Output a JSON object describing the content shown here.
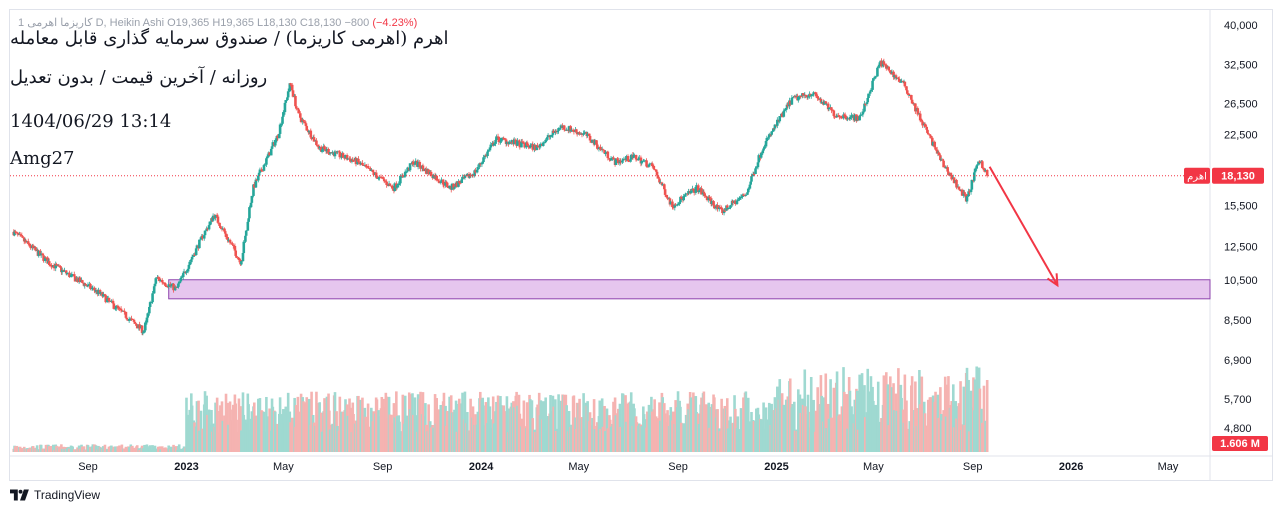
{
  "header": {
    "ohlc_text": "1 ‎کاریزما اهرمی‎ D, Heikin Ashi  O19,365  H19,365  L18,130  C18,130  −800",
    "change_text": "(−4.23%)"
  },
  "annotations": {
    "line1": "اهرم (اهرمی کاریزما) / صندوق سرمایه گذاری قابل معامله",
    "line2": "روزانه / آخرین قیمت / بدون تعدیل",
    "line3": "1404/06/29 13:14",
    "line4": "Amg27"
  },
  "branding": {
    "name": "TradingView"
  },
  "colors": {
    "up": "#26a69a",
    "down": "#ef5350",
    "vol_up": "#9fd9d1",
    "vol_down": "#f5b3b1",
    "price_label": "#f23645",
    "zone_fill": "#e6c6ee",
    "zone_stroke": "#8e44ad",
    "arrow": "#f23645",
    "axis_text": "#131722"
  },
  "chart_data": {
    "type": "candlestick",
    "style": "Heikin Ashi",
    "timeframe": "D",
    "scale": "log",
    "last_price": 18130,
    "last_price_label": "18,130",
    "symbol_label": "اهرم",
    "volume_label": "1.606 M",
    "y_ticks": [
      40000,
      32500,
      26500,
      22500,
      18500,
      15500,
      12500,
      10500,
      8500
    ],
    "y_tick_labels": [
      "40,000",
      "32,500",
      "26,500",
      "22,500",
      "",
      "15,500",
      "12,500",
      "10,500",
      "8,500"
    ],
    "volume_ticks": [
      6900000,
      5700000,
      4800000
    ],
    "volume_tick_labels": [
      "6,900",
      "5,700",
      "4,800"
    ],
    "x_ticks": [
      {
        "date": "2022-09",
        "label": "Sep",
        "bold": false
      },
      {
        "date": "2023-01",
        "label": "2023",
        "bold": true
      },
      {
        "date": "2023-05",
        "label": "May",
        "bold": false
      },
      {
        "date": "2023-09",
        "label": "Sep",
        "bold": false
      },
      {
        "date": "2024-01",
        "label": "2024",
        "bold": true
      },
      {
        "date": "2024-05",
        "label": "May",
        "bold": false
      },
      {
        "date": "2024-09",
        "label": "Sep",
        "bold": false
      },
      {
        "date": "2025-01",
        "label": "2025",
        "bold": true
      },
      {
        "date": "2025-05",
        "label": "May",
        "bold": false
      },
      {
        "date": "2025-09",
        "label": "Sep",
        "bold": false
      },
      {
        "date": "2026-01",
        "label": "2026",
        "bold": true
      },
      {
        "date": "2026-05",
        "label": "May",
        "bold": false
      }
    ],
    "price_path": [
      [
        "2022-06-01",
        13500
      ],
      [
        "2022-07-15",
        11500
      ],
      [
        "2022-08-01",
        11000
      ],
      [
        "2022-09-15",
        9800
      ],
      [
        "2022-11-10",
        8000
      ],
      [
        "2022-11-25",
        10600
      ],
      [
        "2022-12-20",
        10000
      ],
      [
        "2023-01-15",
        12500
      ],
      [
        "2023-02-05",
        14800
      ],
      [
        "2023-03-10",
        11500
      ],
      [
        "2023-03-25",
        17000
      ],
      [
        "2023-04-25",
        22500
      ],
      [
        "2023-05-10",
        29500
      ],
      [
        "2023-05-20",
        25000
      ],
      [
        "2023-06-15",
        21000
      ],
      [
        "2023-08-01",
        19500
      ],
      [
        "2023-09-15",
        17000
      ],
      [
        "2023-10-10",
        19500
      ],
      [
        "2023-11-25",
        17000
      ],
      [
        "2023-12-25",
        18500
      ],
      [
        "2024-01-20",
        22000
      ],
      [
        "2024-03-10",
        21000
      ],
      [
        "2024-04-10",
        23500
      ],
      [
        "2024-05-10",
        22500
      ],
      [
        "2024-06-15",
        19500
      ],
      [
        "2024-07-10",
        20000
      ],
      [
        "2024-08-01",
        19000
      ],
      [
        "2024-08-25",
        15500
      ],
      [
        "2024-09-25",
        17000
      ],
      [
        "2024-10-25",
        15000
      ],
      [
        "2024-11-25",
        16500
      ],
      [
        "2024-12-15",
        21000
      ],
      [
        "2025-01-20",
        27000
      ],
      [
        "2025-02-15",
        28000
      ],
      [
        "2025-03-15",
        25000
      ],
      [
        "2025-04-15",
        24500
      ],
      [
        "2025-05-10",
        33000
      ],
      [
        "2025-06-10",
        29000
      ],
      [
        "2025-07-01",
        24000
      ],
      [
        "2025-07-25",
        19500
      ],
      [
        "2025-08-25",
        16000
      ],
      [
        "2025-09-10",
        19800
      ],
      [
        "2025-09-20",
        18130
      ]
    ],
    "support_zone": {
      "low": 9500,
      "high": 10500,
      "from": "2022-12-10",
      "to": "2026-07-15"
    },
    "projection_arrow": {
      "from": {
        "date": "2025-09-22",
        "price": 19000
      },
      "to": {
        "date": "2025-12-15",
        "price": 10200
      }
    }
  }
}
